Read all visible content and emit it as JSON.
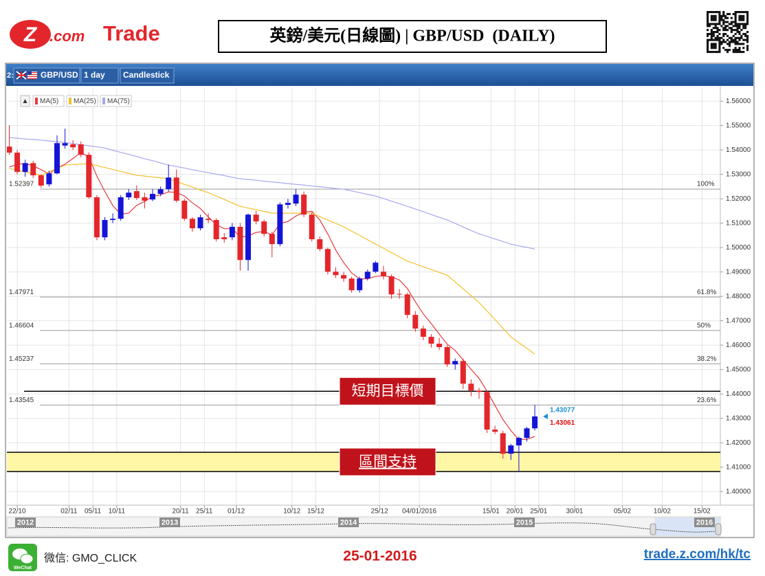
{
  "header": {
    "logo": {
      "mark": "Z",
      "dotcom": ".com",
      "brand": "Trade"
    },
    "title": "英鎊/美元(日線圖) | GBP/USD  (DAILY)"
  },
  "toolbar": {
    "prefix": "2:",
    "symbol": "GBP/USD",
    "interval": "1 day",
    "chart_type": "Candlestick"
  },
  "chart_data": {
    "type": "candlestick",
    "up_color": "#1414d8",
    "down_color": "#e3262b",
    "candles": {
      "open": [
        1.5414,
        1.5389,
        1.531,
        1.5346,
        1.5296,
        1.5259,
        1.5304,
        1.5418,
        1.5423,
        1.5423,
        1.538,
        1.5206,
        1.5042,
        1.5113,
        1.5118,
        1.5206,
        1.5231,
        1.5206,
        1.5197,
        1.522,
        1.5239,
        1.5287,
        1.5192,
        1.5118,
        1.5079,
        1.5118,
        1.5113,
        1.5042,
        1.5042,
        1.5085,
        1.4949,
        1.5135,
        1.5107,
        1.5056,
        1.5014,
        1.5175,
        1.518,
        1.5217,
        1.5135,
        1.5034,
        1.4994,
        1.4901,
        1.4887,
        1.4873,
        1.4825,
        1.4873,
        1.4901,
        1.4901,
        1.4882,
        1.481,
        1.4808,
        1.4724,
        1.4668,
        1.4634,
        1.4606,
        1.4592,
        1.4521,
        1.4535,
        1.4442,
        1.4414,
        1.4408,
        1.4254,
        1.4239,
        1.4155,
        1.4189,
        1.422,
        1.4259
      ],
      "high": [
        1.5501,
        1.54,
        1.536,
        1.5355,
        1.53,
        1.5315,
        1.546,
        1.5487,
        1.544,
        1.5435,
        1.539,
        1.5215,
        1.5125,
        1.514,
        1.5215,
        1.524,
        1.5255,
        1.5225,
        1.524,
        1.525,
        1.534,
        1.532,
        1.52,
        1.5125,
        1.5135,
        1.514,
        1.512,
        1.506,
        1.51,
        1.51,
        1.514,
        1.515,
        1.5115,
        1.5065,
        1.5185,
        1.52,
        1.524,
        1.523,
        1.5145,
        1.5045,
        1.5,
        1.492,
        1.49,
        1.488,
        1.488,
        1.491,
        1.4945,
        1.4925,
        1.489,
        1.483,
        1.4815,
        1.474,
        1.468,
        1.4645,
        1.463,
        1.46,
        1.4545,
        1.4545,
        1.446,
        1.4425,
        1.4415,
        1.427,
        1.425,
        1.4195,
        1.4225,
        1.4265,
        1.4355
      ],
      "low": [
        1.538,
        1.53,
        1.529,
        1.5285,
        1.5245,
        1.525,
        1.53,
        1.5405,
        1.54,
        1.537,
        1.52,
        1.503,
        1.503,
        1.51,
        1.511,
        1.5195,
        1.5195,
        1.516,
        1.519,
        1.521,
        1.523,
        1.5185,
        1.511,
        1.5065,
        1.507,
        1.51,
        1.5025,
        1.502,
        1.503,
        1.4905,
        1.4905,
        1.5095,
        1.5045,
        1.496,
        1.5005,
        1.516,
        1.517,
        1.5125,
        1.5025,
        1.4985,
        1.489,
        1.4875,
        1.486,
        1.4815,
        1.4815,
        1.4865,
        1.4895,
        1.487,
        1.479,
        1.479,
        1.471,
        1.4655,
        1.462,
        1.459,
        1.458,
        1.451,
        1.45,
        1.442,
        1.439,
        1.438,
        1.424,
        1.4235,
        1.4135,
        1.413,
        1.408,
        1.4205,
        1.425
      ],
      "close": [
        1.5389,
        1.531,
        1.5346,
        1.5296,
        1.5254,
        1.5304,
        1.5428,
        1.5428,
        1.5411,
        1.538,
        1.5206,
        1.5042,
        1.5113,
        1.5118,
        1.5206,
        1.5225,
        1.5203,
        1.5192,
        1.522,
        1.5239,
        1.5287,
        1.5192,
        1.5118,
        1.5079,
        1.5124,
        1.5113,
        1.5034,
        1.5034,
        1.5085,
        1.4949,
        1.5135,
        1.5107,
        1.5056,
        1.5014,
        1.5177,
        1.5183,
        1.5217,
        1.5135,
        1.5034,
        1.4994,
        1.4901,
        1.4887,
        1.4873,
        1.4825,
        1.4873,
        1.4901,
        1.4938,
        1.4882,
        1.4808,
        1.4808,
        1.4724,
        1.4668,
        1.4634,
        1.4606,
        1.4592,
        1.4521,
        1.4535,
        1.4442,
        1.4414,
        1.4408,
        1.4254,
        1.4245,
        1.4155,
        1.4189,
        1.422,
        1.4259,
        1.4308
      ]
    },
    "series": [
      {
        "name": "MA(5)",
        "color": "#e8383c",
        "values": [
          1.533,
          1.534,
          1.5345,
          1.5335,
          1.5319,
          1.5302,
          1.5326,
          1.5342,
          1.5365,
          1.539,
          1.5371,
          1.5293,
          1.523,
          1.5172,
          1.5137,
          1.5141,
          1.5173,
          1.5189,
          1.5209,
          1.5216,
          1.5228,
          1.5226,
          1.5211,
          1.5183,
          1.516,
          1.5125,
          1.5094,
          1.5077,
          1.5078,
          1.5043,
          1.5047,
          1.5062,
          1.5066,
          1.5052,
          1.5098,
          1.5107,
          1.5129,
          1.5145,
          1.5149,
          1.5113,
          1.5056,
          1.499,
          1.4938,
          1.4896,
          1.4872,
          1.4872,
          1.4882,
          1.4884,
          1.488,
          1.4867,
          1.4832,
          1.4778,
          1.4728,
          1.4688,
          1.4645,
          1.4604,
          1.4578,
          1.4539,
          1.4501,
          1.4464,
          1.4411,
          1.4353,
          1.4295,
          1.425,
          1.4213,
          1.4214,
          1.4226
        ]
      },
      {
        "name": "MA(25)",
        "color": "#f5c02a",
        "values": [
          1.5324,
          1.5317,
          1.531,
          1.5303,
          1.5296,
          1.531,
          1.5324,
          1.5338,
          1.534,
          1.5342,
          1.5344,
          1.5336,
          1.5328,
          1.532,
          1.5312,
          1.5304,
          1.5296,
          1.5293,
          1.5289,
          1.5286,
          1.5282,
          1.5271,
          1.5259,
          1.5248,
          1.5236,
          1.5225,
          1.5211,
          1.5197,
          1.5183,
          1.5169,
          1.5162,
          1.5155,
          1.5148,
          1.5141,
          1.5141,
          1.5141,
          1.5141,
          1.5141,
          1.5141,
          1.5127,
          1.5113,
          1.5099,
          1.5085,
          1.5067,
          1.505,
          1.5032,
          1.5014,
          1.4997,
          1.4979,
          1.4962,
          1.4944,
          1.4933,
          1.4921,
          1.491,
          1.4898,
          1.4887,
          1.4859,
          1.4831,
          1.4803,
          1.4775,
          1.474,
          1.4705,
          1.4669,
          1.4634,
          1.461,
          1.4587,
          1.4563
        ]
      },
      {
        "name": "MA(75)",
        "color": "#a6a6ee",
        "values": [
          1.5451,
          1.5448,
          1.5445,
          1.5443,
          1.544,
          1.5437,
          1.5434,
          1.5431,
          1.5426,
          1.5422,
          1.5417,
          1.5413,
          1.5408,
          1.5399,
          1.539,
          1.5382,
          1.5373,
          1.5364,
          1.5356,
          1.5347,
          1.5338,
          1.5332,
          1.5326,
          1.5319,
          1.5313,
          1.5307,
          1.5301,
          1.5295,
          1.5288,
          1.5282,
          1.5279,
          1.5276,
          1.5272,
          1.5269,
          1.5266,
          1.5262,
          1.5259,
          1.5256,
          1.5252,
          1.5249,
          1.5246,
          1.5242,
          1.5239,
          1.5232,
          1.5225,
          1.5218,
          1.5211,
          1.5201,
          1.519,
          1.518,
          1.5169,
          1.5158,
          1.5147,
          1.5135,
          1.5124,
          1.5113,
          1.5099,
          1.5084,
          1.507,
          1.5056,
          1.5046,
          1.5035,
          1.5025,
          1.5014,
          1.5007,
          1.5001,
          1.4994
        ]
      }
    ],
    "xlim": [
      -0.3,
      89.3
    ],
    "xticks": [
      {
        "value": 1,
        "label": "22/10"
      },
      {
        "value": 7.5,
        "label": "02/11"
      },
      {
        "value": 10.5,
        "label": "05/11"
      },
      {
        "value": 13.5,
        "label": "10/11"
      },
      {
        "value": 21.5,
        "label": "20/11"
      },
      {
        "value": 24.5,
        "label": "25/11"
      },
      {
        "value": 28.5,
        "label": "01/12"
      },
      {
        "value": 35.5,
        "label": "10/12"
      },
      {
        "value": 38.5,
        "label": "15/12"
      },
      {
        "value": 46.5,
        "label": "25/12"
      },
      {
        "value": 51.5,
        "label": "04/01/2016"
      },
      {
        "value": 60.5,
        "label": "15/01"
      },
      {
        "value": 63.5,
        "label": "20/01"
      },
      {
        "value": 66.5,
        "label": "25/01"
      },
      {
        "value": 71,
        "label": "30/01"
      },
      {
        "value": 77,
        "label": "05/02"
      },
      {
        "value": 82,
        "label": "10/02"
      },
      {
        "value": 87,
        "label": "15/02"
      }
    ],
    "ylim": [
      1.3944,
      1.5654
    ],
    "yticks": [
      {
        "value": 1.4,
        "label": "1.40000"
      },
      {
        "value": 1.41,
        "label": "1.41000"
      },
      {
        "value": 1.42,
        "label": "1.42000"
      },
      {
        "value": 1.43,
        "label": "1.43000"
      },
      {
        "value": 1.44,
        "label": "1.44000"
      },
      {
        "value": 1.45,
        "label": "1.45000"
      },
      {
        "value": 1.46,
        "label": "1.46000"
      },
      {
        "value": 1.47,
        "label": "1.47000"
      },
      {
        "value": 1.48,
        "label": "1.48000"
      },
      {
        "value": 1.49,
        "label": "1.49000"
      },
      {
        "value": 1.5,
        "label": "1.50000"
      },
      {
        "value": 1.51,
        "label": "1.51000"
      },
      {
        "value": 1.52,
        "label": "1.52000"
      },
      {
        "value": 1.53,
        "label": "1.53000"
      },
      {
        "value": 1.54,
        "label": "1.54000"
      },
      {
        "value": 1.55,
        "label": "1.55000"
      },
      {
        "value": 1.56,
        "label": "1.56000"
      }
    ],
    "grid": true,
    "fib_levels": [
      {
        "price": 1.52397,
        "level": "100%"
      },
      {
        "price": 1.47971,
        "level": "61.8%"
      },
      {
        "price": 1.46604,
        "level": "50%"
      },
      {
        "price": 1.45237,
        "level": "38.2%"
      },
      {
        "price": 1.43545,
        "level": "23.6%"
      }
    ],
    "target": {
      "label": "短期目標價",
      "price": 1.4411
    },
    "support": {
      "label": "區間支持",
      "high": 1.4161,
      "low": 1.4082
    },
    "last_prices": [
      {
        "value": 1.43077,
        "color": "#1a8fd0"
      },
      {
        "value": 1.43061,
        "color": "#e01010"
      }
    ],
    "navigator_years": [
      "2012",
      "2013",
      "2014",
      "2015",
      "2016"
    ]
  },
  "footer": {
    "wechat_icon_text": "WeChat",
    "wechat": "微信: GMO_CLICK",
    "date": "25-01-2016",
    "url": "trade.z.com/hk/tc"
  }
}
